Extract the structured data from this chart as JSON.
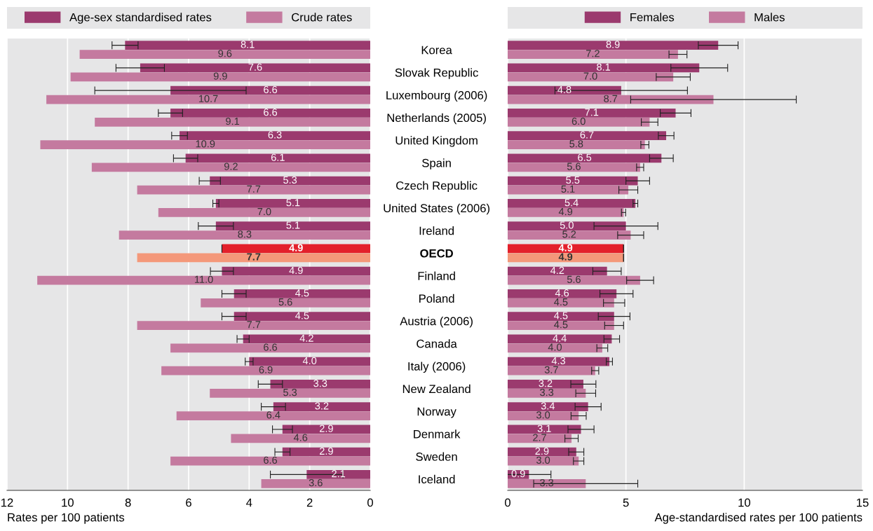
{
  "chart_data": [
    {
      "type": "bar",
      "orientation": "horizontal",
      "xlabel": "Rates per 100 patients",
      "xlim": [
        12,
        0
      ],
      "xticks": [
        12,
        10,
        8,
        6,
        4,
        2,
        0
      ],
      "grid": "x",
      "legend": "top",
      "tick_labels": "x",
      "categories": [
        null,
        null,
        null,
        null,
        null,
        null,
        null,
        null,
        null,
        null,
        null,
        null,
        null,
        null,
        null,
        null,
        null,
        null,
        null,
        null
      ],
      "series": [
        {
          "name": "Age-sex standardised rates",
          "color": "#9b3a6e",
          "colors": [
            "#9b3a6e",
            "#9b3a6e",
            "#9b3a6e",
            "#9b3a6e",
            "#9b3a6e",
            "#9b3a6e",
            "#9b3a6e",
            "#9b3a6e",
            "#9b3a6e",
            "#e3202b",
            "#9b3a6e",
            "#9b3a6e",
            "#9b3a6e",
            "#9b3a6e",
            "#9b3a6e",
            "#9b3a6e",
            "#9b3a6e",
            "#9b3a6e",
            "#9b3a6e",
            "#9b3a6e"
          ],
          "values": [
            8.1,
            7.6,
            6.6,
            6.6,
            6.3,
            6.1,
            5.3,
            5.1,
            5.1,
            4.9,
            4.9,
            4.5,
            4.5,
            4.2,
            4.0,
            3.3,
            3.2,
            2.9,
            2.9,
            2.1
          ],
          "value_labels": [
            "8.1",
            "7.6",
            "6.6",
            "6.6",
            "6.3",
            "6.1",
            "5.3",
            "5.1",
            "5.1",
            "4.9",
            "4.9",
            "4.5",
            "4.5",
            "4.2",
            "4.0",
            "3.3",
            "3.2",
            "2.9",
            "2.9",
            "2.1"
          ],
          "errors": [
            0.43,
            0.8,
            2.5,
            0.4,
            0.26,
            0.4,
            0.35,
            0.1,
            0.58,
            null,
            0.38,
            0.4,
            0.4,
            0.2,
            0.13,
            0.4,
            0.4,
            0.33,
            0.25,
            1.2
          ]
        },
        {
          "name": "Crude rates",
          "color": "#c47a9f",
          "colors": [
            "#c47a9f",
            "#c47a9f",
            "#c47a9f",
            "#c47a9f",
            "#c47a9f",
            "#c47a9f",
            "#c47a9f",
            "#c47a9f",
            "#c47a9f",
            "#f4987a",
            "#c47a9f",
            "#c47a9f",
            "#c47a9f",
            "#c47a9f",
            "#c47a9f",
            "#c47a9f",
            "#c47a9f",
            "#c47a9f",
            "#c47a9f",
            "#c47a9f"
          ],
          "values": [
            9.6,
            9.9,
            10.7,
            9.1,
            10.9,
            9.2,
            7.7,
            7.0,
            8.3,
            7.7,
            11.0,
            5.6,
            7.7,
            6.6,
            6.9,
            5.3,
            6.4,
            4.6,
            6.6,
            3.6
          ],
          "value_labels": [
            "9.6",
            "9.9",
            "10.7",
            "9.1",
            "10.9",
            "9.2",
            "7.7",
            "7.0",
            "8.3",
            "7.7",
            "11.0",
            "5.6",
            "7.7",
            "6.6",
            "6.9",
            "5.3",
            "6.4",
            "4.6",
            "6.6",
            "3.6"
          ]
        }
      ]
    },
    {
      "type": "bar",
      "orientation": "horizontal",
      "xlabel": "Age-standardised rates per 100 patients",
      "xlim": [
        0,
        15
      ],
      "xticks": [
        0,
        5,
        10,
        15
      ],
      "grid": "x",
      "legend": "top",
      "categories": [
        "Korea",
        "Slovak Republic",
        "Luxembourg (2006)",
        "Netherlands (2005)",
        "United Kingdom",
        "Spain",
        "Czech Republic",
        "United States (2006)",
        "Ireland",
        "OECD",
        "Finland",
        "Poland",
        "Austria (2006)",
        "Canada",
        "Italy (2006)",
        "New Zealand",
        "Norway",
        "Denmark",
        "Sweden",
        "Iceland"
      ],
      "series": [
        {
          "name": "Females",
          "color": "#9b3a6e",
          "colors": [
            "#9b3a6e",
            "#9b3a6e",
            "#9b3a6e",
            "#9b3a6e",
            "#9b3a6e",
            "#9b3a6e",
            "#9b3a6e",
            "#9b3a6e",
            "#9b3a6e",
            "#e3202b",
            "#9b3a6e",
            "#9b3a6e",
            "#9b3a6e",
            "#9b3a6e",
            "#9b3a6e",
            "#9b3a6e",
            "#9b3a6e",
            "#9b3a6e",
            "#9b3a6e",
            "#9b3a6e"
          ],
          "values": [
            8.9,
            8.1,
            4.8,
            7.1,
            6.7,
            6.5,
            5.5,
            5.4,
            5.0,
            4.9,
            4.2,
            4.6,
            4.5,
            4.4,
            4.3,
            3.2,
            3.4,
            3.1,
            2.9,
            0.9
          ],
          "value_labels": [
            "8.9",
            "8.1",
            "4.8",
            "7.1",
            "6.7",
            "6.5",
            "5.5",
            "5.4",
            "5.0",
            "4.9",
            "4.2",
            "4.6",
            "4.5",
            "4.4",
            "4.3",
            "3.2",
            "3.4",
            "3.1",
            "2.9",
            "0.9"
          ],
          "errors": [
            0.84,
            1.2,
            2.8,
            0.65,
            0.33,
            0.5,
            0.5,
            0.1,
            1.35,
            null,
            0.6,
            0.7,
            0.67,
            0.33,
            0.13,
            0.53,
            0.55,
            0.55,
            0.32,
            0.93
          ]
        },
        {
          "name": "Males",
          "color": "#c47a9f",
          "colors": [
            "#c47a9f",
            "#c47a9f",
            "#c47a9f",
            "#c47a9f",
            "#c47a9f",
            "#c47a9f",
            "#c47a9f",
            "#c47a9f",
            "#c47a9f",
            "#f4987a",
            "#c47a9f",
            "#c47a9f",
            "#c47a9f",
            "#c47a9f",
            "#c47a9f",
            "#c47a9f",
            "#c47a9f",
            "#c47a9f",
            "#c47a9f",
            "#c47a9f"
          ],
          "values": [
            7.2,
            7.0,
            8.7,
            6.0,
            5.8,
            5.6,
            5.1,
            4.9,
            5.2,
            4.9,
            5.6,
            4.5,
            4.5,
            4.0,
            3.7,
            3.3,
            3.0,
            2.7,
            3.0,
            3.3
          ],
          "value_labels": [
            "7.2",
            "7.0",
            "8.7",
            "6.0",
            "5.8",
            "5.6",
            "5.1",
            "4.9",
            "5.2",
            "4.9",
            "5.6",
            "4.5",
            "4.5",
            "4.0",
            "3.7",
            "3.3",
            "3.0",
            "2.7",
            "3.0",
            "3.3"
          ],
          "errors": [
            0.38,
            0.72,
            3.5,
            0.35,
            0.17,
            0.15,
            0.4,
            0.09,
            0.55,
            null,
            0.57,
            0.45,
            0.4,
            0.23,
            0.15,
            0.42,
            0.32,
            0.28,
            0.22,
            2.2
          ]
        }
      ]
    }
  ]
}
